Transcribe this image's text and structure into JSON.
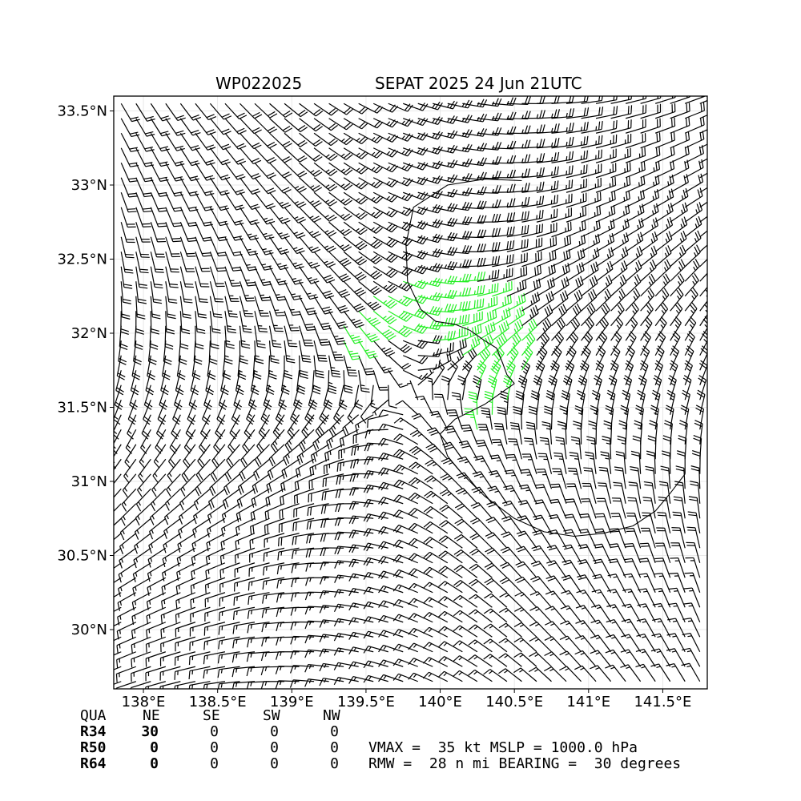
{
  "title": {
    "storm_id": "WP022025",
    "storm_info": "SEPAT 2025 24 Jun 21UTC"
  },
  "chart_data": {
    "type": "wind_barb_map",
    "x_ticks": [
      {
        "value": 138.0,
        "label": "138°E"
      },
      {
        "value": 138.5,
        "label": "138.5°E"
      },
      {
        "value": 139.0,
        "label": "139°E"
      },
      {
        "value": 139.5,
        "label": "139.5°E"
      },
      {
        "value": 140.0,
        "label": "140°E"
      },
      {
        "value": 140.5,
        "label": "140.5°E"
      },
      {
        "value": 141.0,
        "label": "141°E"
      },
      {
        "value": 141.5,
        "label": "141.5°E"
      }
    ],
    "y_ticks": [
      {
        "value": 33.5,
        "label": "33.5°N"
      },
      {
        "value": 33.0,
        "label": "33°N"
      },
      {
        "value": 32.5,
        "label": "32.5°N"
      },
      {
        "value": 32.0,
        "label": "32°N"
      },
      {
        "value": 31.5,
        "label": "31.5°N"
      },
      {
        "value": 31.0,
        "label": "31°N"
      },
      {
        "value": 30.5,
        "label": "30.5°N"
      },
      {
        "value": 30.0,
        "label": "30°N"
      }
    ],
    "xlim": [
      137.8,
      141.8
    ],
    "ylim": [
      29.6,
      33.6
    ],
    "grid": true,
    "center": {
      "lon": 139.77,
      "lat": 31.61
    },
    "rmw_nmi": 28,
    "vmax_kt": 35,
    "mslp_hpa": 1000.0,
    "bearing_deg": 30,
    "r34_quadrant": "NE",
    "r34_nmi": 30,
    "barb_grid_spacing_deg": 0.1,
    "barb_colors": {
      "below_34kt": "#000000",
      "above_34kt": "#22ee22"
    },
    "r34_contour": [
      [
        140.55,
        33.03
      ],
      [
        140.3,
        33.04
      ],
      [
        140.05,
        33.0
      ],
      [
        139.82,
        32.85
      ],
      [
        139.77,
        32.6
      ],
      [
        139.78,
        32.35
      ],
      [
        139.87,
        32.16
      ],
      [
        139.97,
        32.08
      ],
      [
        140.1,
        32.06
      ],
      [
        140.2,
        32.02
      ],
      [
        140.3,
        31.95
      ],
      [
        140.38,
        31.9
      ],
      [
        140.42,
        31.8
      ],
      [
        140.45,
        31.72
      ],
      [
        140.5,
        31.66
      ]
    ],
    "r34_contour_outer": [
      [
        140.5,
        31.66
      ],
      [
        140.3,
        31.52
      ],
      [
        140.1,
        31.42
      ],
      [
        140.0,
        31.32
      ],
      [
        140.05,
        31.17
      ],
      [
        140.15,
        31.05
      ],
      [
        140.3,
        30.9
      ],
      [
        140.5,
        30.75
      ],
      [
        140.7,
        30.66
      ],
      [
        140.9,
        30.63
      ],
      [
        141.1,
        30.65
      ],
      [
        141.3,
        30.7
      ],
      [
        141.45,
        30.8
      ],
      [
        141.55,
        30.92
      ],
      [
        141.65,
        31.05
      ]
    ]
  },
  "table": {
    "header": [
      "QUA",
      "NE",
      "SE",
      "SW",
      "NW"
    ],
    "rows": [
      {
        "label": "R34",
        "values": [
          "30",
          "0",
          "0",
          "0"
        ]
      },
      {
        "label": "R50",
        "values": [
          "0",
          "0",
          "0",
          "0"
        ]
      },
      {
        "label": "R64",
        "values": [
          "0",
          "0",
          "0",
          "0"
        ]
      }
    ]
  },
  "summary": {
    "line1": "VMAX =  35 kt MSLP = 1000.0 hPa",
    "line2": "RMW =  28 n mi BEARING =  30 degrees"
  }
}
